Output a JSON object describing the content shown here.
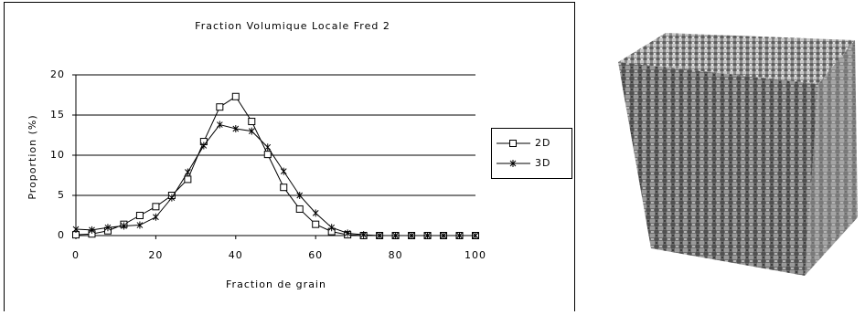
{
  "chart_data": {
    "type": "line",
    "title": "Fraction Volumique Locale Fred 2",
    "x_label": "Fraction de grain",
    "y_label": "Proportion (%)",
    "x": [
      0,
      4,
      8,
      12,
      16,
      20,
      24,
      28,
      32,
      36,
      40,
      44,
      48,
      52,
      56,
      60,
      64,
      68,
      72,
      76,
      80,
      84,
      88,
      92,
      96,
      100
    ],
    "series": [
      {
        "name": "2D",
        "color": "#000000",
        "marker": "square",
        "values": [
          0.1,
          0.2,
          0.6,
          1.4,
          2.5,
          3.6,
          5,
          7,
          11.7,
          16,
          17.3,
          14.2,
          10.1,
          6,
          3.3,
          1.4,
          0.5,
          0.1,
          0,
          0,
          0,
          0,
          0,
          0,
          0,
          0
        ]
      },
      {
        "name": "3D",
        "color": "#000000",
        "marker": "star",
        "values": [
          0.8,
          0.7,
          1.0,
          1.2,
          1.3,
          2.3,
          4.7,
          7.9,
          11.2,
          13.8,
          13.3,
          13.0,
          11,
          8,
          5,
          2.8,
          1.0,
          0.3,
          0.1,
          0,
          0,
          0,
          0,
          0,
          0,
          0
        ]
      }
    ],
    "xlim": [
      0,
      100
    ],
    "xticks": [
      0,
      20,
      40,
      60,
      80,
      100
    ],
    "ylim": [
      0,
      20
    ],
    "yticks": [
      0,
      5,
      10,
      15,
      20
    ],
    "grid": true,
    "legend": "right"
  }
}
